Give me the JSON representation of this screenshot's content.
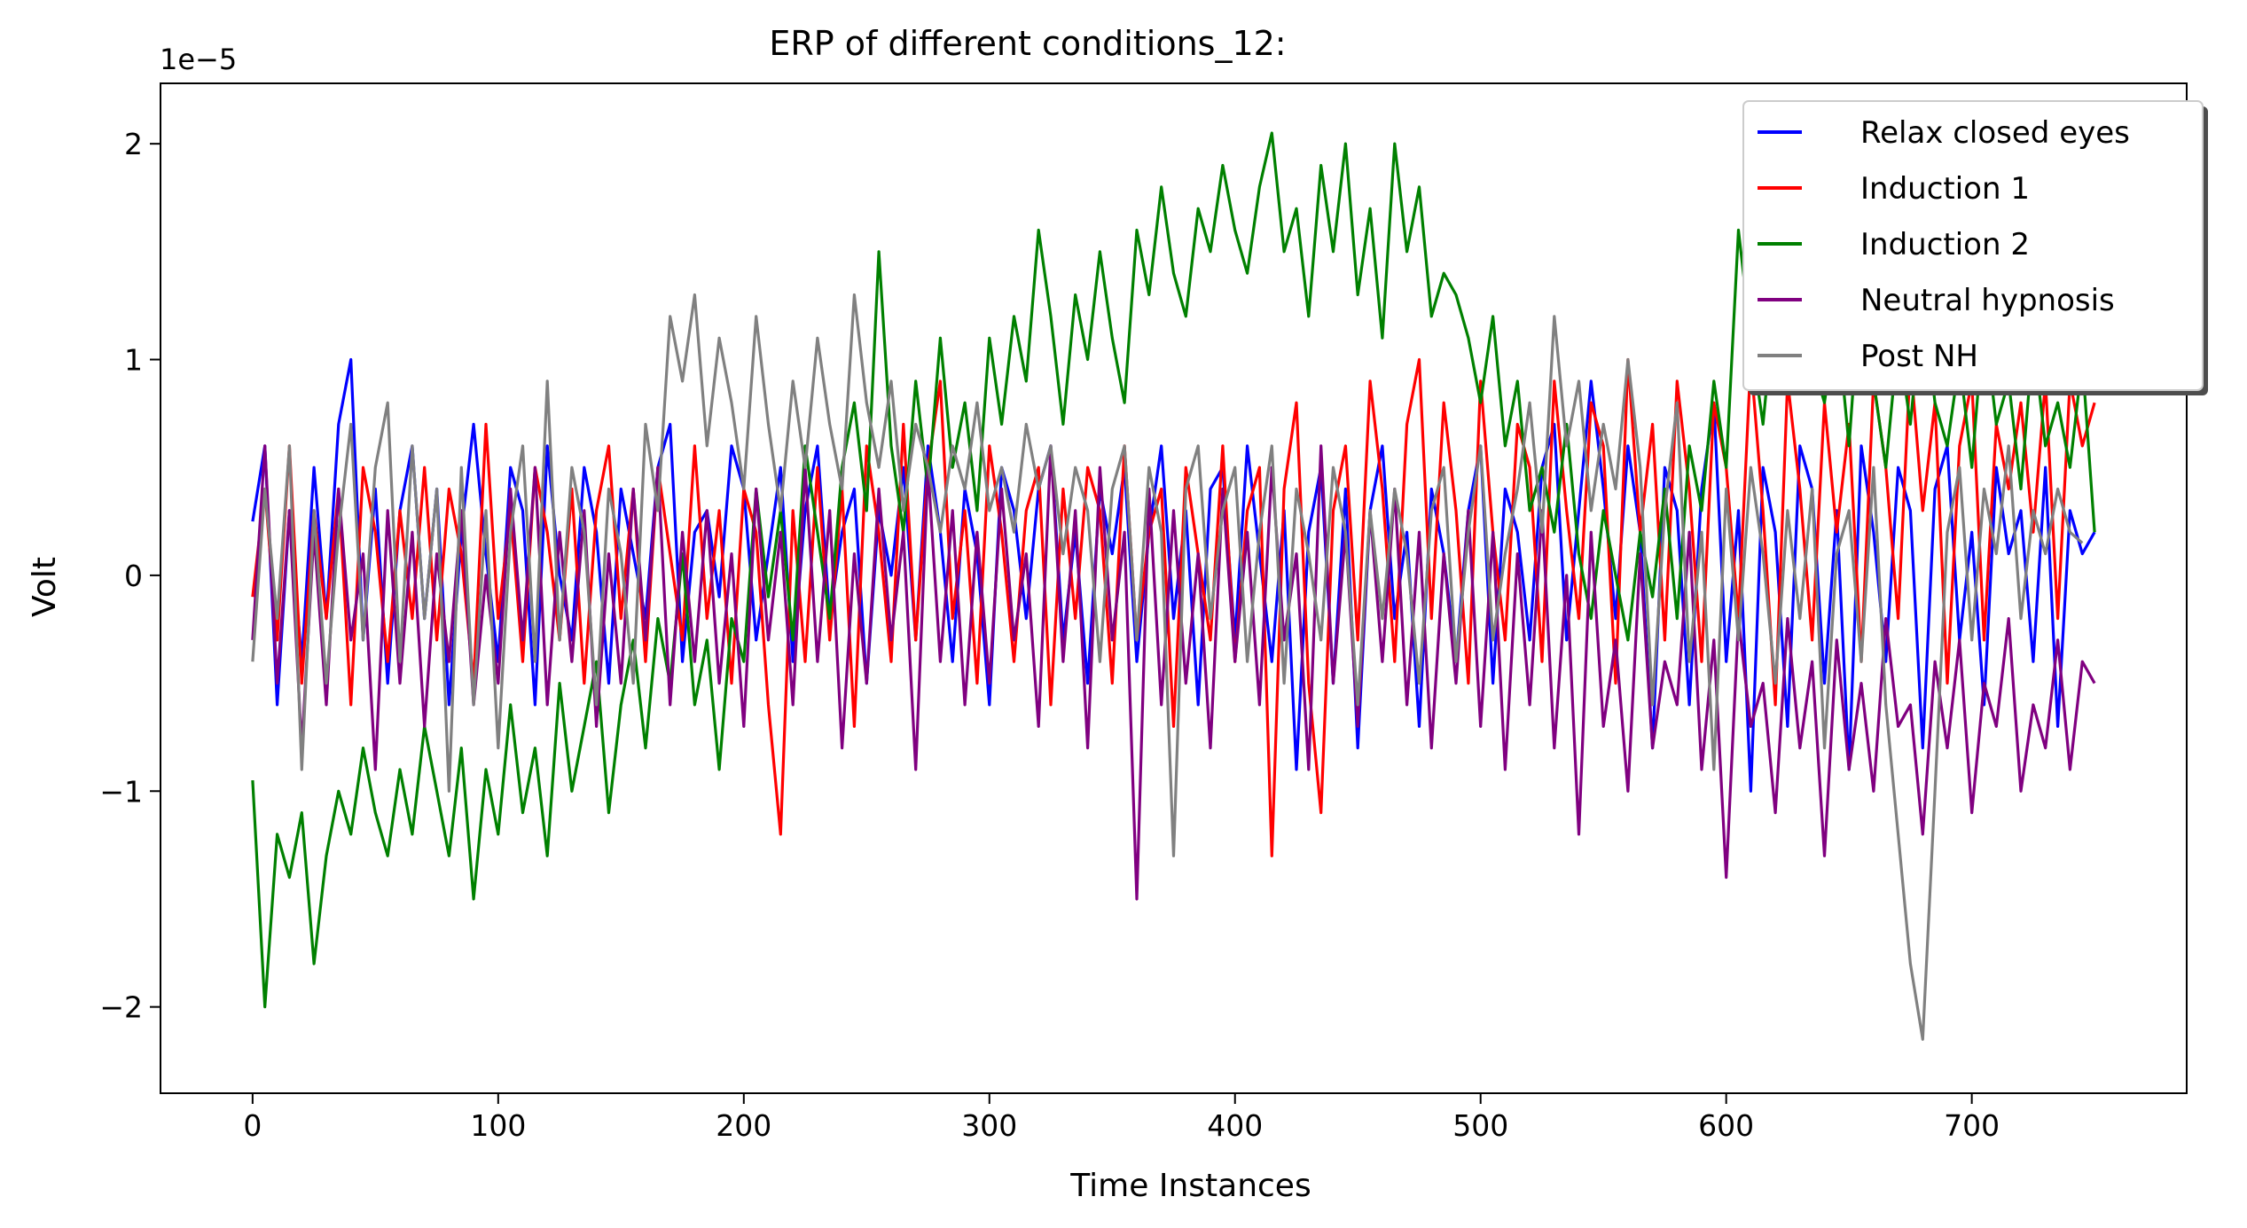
{
  "chart_data": {
    "type": "line",
    "title": "ERP of different conditions_12:",
    "xlabel": "Time Instances",
    "ylabel": "Volt",
    "y_offset_label": "1e−5",
    "xlim": [
      -37.5,
      787.5
    ],
    "ylim": [
      -2.4,
      2.28
    ],
    "x_ticks": [
      0,
      100,
      200,
      300,
      400,
      500,
      600,
      700
    ],
    "x_tick_labels": [
      "0",
      "100",
      "200",
      "300",
      "400",
      "500",
      "600",
      "700"
    ],
    "y_ticks": [
      -2,
      -1,
      0,
      1,
      2
    ],
    "y_tick_labels": [
      "−2",
      "−1",
      "0",
      "1",
      "2"
    ],
    "grid": false,
    "legend_position": "top-right",
    "x_step": 5,
    "series": [
      {
        "name": "Relax closed eyes",
        "color": "#0000ff",
        "values": [
          0.25,
          0.6,
          -0.6,
          0.3,
          -0.4,
          0.5,
          -0.2,
          0.7,
          1.0,
          -0.3,
          0.4,
          -0.5,
          0.3,
          0.6,
          -0.2,
          0.4,
          -0.6,
          0.2,
          0.7,
          0.1,
          -0.4,
          0.5,
          0.3,
          -0.6,
          0.6,
          0.0,
          -0.3,
          0.5,
          0.2,
          -0.5,
          0.4,
          0.1,
          -0.2,
          0.5,
          0.7,
          -0.4,
          0.2,
          0.3,
          -0.1,
          0.6,
          0.4,
          -0.3,
          0.1,
          0.5,
          -0.4,
          0.3,
          0.6,
          -0.2,
          0.2,
          0.4,
          -0.5,
          0.3,
          0.0,
          0.5,
          -0.3,
          0.6,
          0.2,
          -0.4,
          0.4,
          0.1,
          -0.6,
          0.5,
          0.3,
          -0.2,
          0.4,
          0.6,
          -0.3,
          0.2,
          -0.5,
          0.4,
          0.1,
          0.5,
          -0.4,
          0.2,
          0.6,
          -0.2,
          0.3,
          -0.6,
          0.4,
          0.5,
          -0.3,
          0.6,
          0.1,
          -0.4,
          0.3,
          -0.9,
          0.2,
          0.5,
          -0.5,
          0.4,
          -0.8,
          0.3,
          0.6,
          -0.2,
          0.2,
          -0.7,
          0.4,
          0.1,
          -0.4,
          0.3,
          0.6,
          -0.5,
          0.4,
          0.2,
          -0.3,
          0.5,
          0.7,
          -0.3,
          0.3,
          0.9,
          0.4,
          -0.2,
          0.6,
          0.2,
          -0.8,
          0.5,
          0.3,
          -0.6,
          0.4,
          0.8,
          -0.4,
          0.3,
          -1.0,
          0.5,
          0.2,
          -0.7,
          0.6,
          0.4,
          -0.5,
          0.3,
          -0.9,
          0.6,
          0.2,
          -0.4,
          0.5,
          0.3,
          -0.8,
          0.4,
          0.6,
          -0.3,
          0.2,
          -0.6,
          0.5,
          0.1,
          0.3,
          -0.4,
          0.5,
          -0.7,
          0.3,
          0.1,
          0.2
        ]
      },
      {
        "name": "Induction 1",
        "color": "#ff0000",
        "values": [
          -0.1,
          0.4,
          -0.3,
          0.6,
          -0.5,
          0.3,
          -0.2,
          0.4,
          -0.6,
          0.5,
          0.2,
          -0.4,
          0.3,
          -0.2,
          0.5,
          -0.3,
          0.4,
          0.1,
          -0.5,
          0.7,
          -0.2,
          0.3,
          -0.4,
          0.5,
          0.2,
          -0.3,
          0.4,
          -0.5,
          0.3,
          0.6,
          -0.2,
          0.4,
          -0.4,
          0.5,
          0.1,
          -0.3,
          0.6,
          -0.2,
          0.3,
          -0.5,
          0.4,
          0.2,
          -0.6,
          -1.2,
          0.3,
          -0.4,
          0.5,
          -0.3,
          0.4,
          -0.7,
          0.6,
          0.2,
          -0.4,
          0.7,
          -0.3,
          0.5,
          0.9,
          -0.2,
          0.3,
          -0.5,
          0.6,
          0.2,
          -0.4,
          0.3,
          0.5,
          -0.6,
          0.4,
          -0.2,
          0.5,
          0.3,
          -0.5,
          0.6,
          -0.3,
          0.2,
          0.4,
          -0.7,
          0.5,
          0.1,
          -0.3,
          0.6,
          -0.4,
          0.3,
          0.5,
          -1.3,
          0.4,
          0.8,
          -0.5,
          -1.1,
          0.3,
          0.6,
          -0.3,
          0.9,
          0.4,
          -0.4,
          0.7,
          1.0,
          -0.2,
          0.8,
          0.3,
          -0.5,
          0.9,
          0.2,
          -0.3,
          0.7,
          0.5,
          -0.4,
          0.9,
          0.3,
          -0.2,
          0.8,
          0.6,
          -0.5,
          1.0,
          0.2,
          0.7,
          -0.3,
          0.9,
          0.4,
          -0.4,
          0.8,
          0.5,
          -0.2,
          1.0,
          0.3,
          -0.6,
          0.9,
          0.4,
          -0.3,
          0.8,
          0.2,
          0.7,
          -0.4,
          0.9,
          0.5,
          -0.2,
          1.0,
          0.3,
          0.8,
          -0.5,
          0.6,
          0.9,
          -0.3,
          0.7,
          0.4,
          0.8,
          0.2,
          0.9,
          -0.2,
          0.9,
          0.6,
          0.8
        ]
      },
      {
        "name": "Induction 2",
        "color": "#008000",
        "values": [
          -0.95,
          -2.0,
          -1.2,
          -1.4,
          -1.1,
          -1.8,
          -1.3,
          -1.0,
          -1.2,
          -0.8,
          -1.1,
          -1.3,
          -0.9,
          -1.2,
          -0.7,
          -1.0,
          -1.3,
          -0.8,
          -1.5,
          -0.9,
          -1.2,
          -0.6,
          -1.1,
          -0.8,
          -1.3,
          -0.5,
          -1.0,
          -0.7,
          -0.4,
          -1.1,
          -0.6,
          -0.3,
          -0.8,
          -0.2,
          -0.5,
          0.1,
          -0.6,
          -0.3,
          -0.9,
          -0.2,
          -0.4,
          0.4,
          -0.1,
          0.3,
          -0.3,
          0.6,
          0.2,
          -0.2,
          0.5,
          0.8,
          0.3,
          1.5,
          0.6,
          0.2,
          0.9,
          0.4,
          1.1,
          0.5,
          0.8,
          0.3,
          1.1,
          0.7,
          1.2,
          0.9,
          1.6,
          1.2,
          0.7,
          1.3,
          1.0,
          1.5,
          1.1,
          0.8,
          1.6,
          1.3,
          1.8,
          1.4,
          1.2,
          1.7,
          1.5,
          1.9,
          1.6,
          1.4,
          1.8,
          2.05,
          1.5,
          1.7,
          1.2,
          1.9,
          1.5,
          2.0,
          1.3,
          1.7,
          1.1,
          2.0,
          1.5,
          1.8,
          1.2,
          1.4,
          1.3,
          1.1,
          0.8,
          1.2,
          0.6,
          0.9,
          0.3,
          0.5,
          0.2,
          0.7,
          0.1,
          -0.2,
          0.3,
          0.0,
          -0.3,
          0.2,
          -0.1,
          0.4,
          -0.2,
          0.6,
          0.3,
          0.9,
          0.5,
          1.6,
          1.1,
          0.7,
          1.3,
          0.9,
          1.5,
          1.0,
          0.8,
          1.2,
          0.6,
          1.4,
          0.9,
          0.5,
          1.1,
          0.7,
          1.3,
          0.8,
          0.6,
          1.0,
          0.5,
          1.2,
          0.7,
          0.9,
          0.4,
          1.1,
          0.6,
          0.8,
          0.5,
          1.0,
          0.2
        ]
      },
      {
        "name": "Neutral hypnosis",
        "color": "#800080",
        "values": [
          -0.3,
          0.6,
          -0.5,
          0.3,
          -0.8,
          0.2,
          -0.6,
          0.4,
          -0.3,
          0.1,
          -0.9,
          0.3,
          -0.5,
          0.2,
          -0.7,
          0.1,
          -0.4,
          0.3,
          -0.6,
          0.0,
          -0.5,
          0.4,
          -0.3,
          0.5,
          -0.6,
          0.2,
          -0.4,
          0.3,
          -0.7,
          0.1,
          -0.5,
          0.4,
          -0.3,
          0.5,
          -0.6,
          0.2,
          -0.4,
          0.3,
          -0.5,
          0.1,
          -0.7,
          0.4,
          -0.3,
          0.2,
          -0.6,
          0.5,
          -0.4,
          0.3,
          -0.8,
          0.1,
          -0.5,
          0.4,
          -0.3,
          0.2,
          -0.9,
          0.5,
          -0.4,
          0.3,
          -0.6,
          0.2,
          -0.5,
          0.4,
          -0.3,
          0.1,
          -0.7,
          0.6,
          -0.4,
          0.3,
          -0.8,
          0.5,
          -0.3,
          0.2,
          -1.5,
          0.4,
          -0.6,
          0.3,
          -0.5,
          0.1,
          -0.8,
          0.4,
          -0.4,
          0.2,
          -0.6,
          0.5,
          -0.3,
          0.1,
          -0.9,
          0.6,
          -0.5,
          0.2,
          -0.7,
          0.3,
          -0.4,
          0.4,
          -0.6,
          0.2,
          -0.8,
          0.1,
          -0.5,
          0.3,
          -0.7,
          0.2,
          -0.9,
          0.1,
          -0.6,
          0.3,
          -0.8,
          0.0,
          -1.2,
          0.2,
          -0.7,
          -0.3,
          -1.0,
          0.1,
          -0.8,
          -0.4,
          -0.6,
          0.2,
          -0.9,
          -0.3,
          -1.4,
          -0.2,
          -0.7,
          -0.5,
          -1.1,
          -0.2,
          -0.8,
          -0.4,
          -1.3,
          -0.3,
          -0.9,
          -0.5,
          -1.0,
          -0.2,
          -0.7,
          -0.6,
          -1.2,
          -0.4,
          -0.8,
          -0.3,
          -1.1,
          -0.5,
          -0.7,
          -0.2,
          -1.0,
          -0.6,
          -0.8,
          -0.3,
          -0.9,
          -0.4,
          -0.5
        ]
      },
      {
        "name": "Post NH",
        "color": "#808080",
        "values": [
          -0.4,
          0.4,
          -0.2,
          0.6,
          -0.9,
          0.3,
          -0.5,
          0.2,
          0.7,
          -0.3,
          0.5,
          0.8,
          -0.4,
          0.6,
          -0.2,
          0.4,
          -1.0,
          0.5,
          -0.6,
          0.3,
          -0.8,
          0.2,
          0.6,
          -0.4,
          0.9,
          -0.3,
          0.5,
          0.2,
          -0.6,
          0.4,
          0.1,
          -0.5,
          0.7,
          0.3,
          1.2,
          0.9,
          1.3,
          0.6,
          1.1,
          0.8,
          0.4,
          1.2,
          0.7,
          0.3,
          0.9,
          0.5,
          1.1,
          0.7,
          0.4,
          1.3,
          0.8,
          0.5,
          0.9,
          0.3,
          0.7,
          0.5,
          0.2,
          0.6,
          0.4,
          0.8,
          0.3,
          0.5,
          0.2,
          0.7,
          0.4,
          0.6,
          0.1,
          0.5,
          0.3,
          -0.4,
          0.4,
          0.6,
          -0.3,
          0.5,
          0.2,
          -1.3,
          0.4,
          0.6,
          -0.2,
          0.3,
          0.5,
          -0.4,
          0.2,
          0.6,
          -0.5,
          0.4,
          0.1,
          -0.3,
          0.5,
          0.2,
          -0.6,
          0.3,
          -0.2,
          0.4,
          0.1,
          -0.5,
          0.3,
          0.5,
          -0.4,
          0.2,
          0.6,
          -0.3,
          0.1,
          0.4,
          0.8,
          0.2,
          1.2,
          0.6,
          0.9,
          0.3,
          0.7,
          0.4,
          1.0,
          0.5,
          -0.6,
          0.3,
          0.8,
          -0.4,
          0.2,
          -0.9,
          0.4,
          -0.3,
          0.5,
          0.1,
          -0.5,
          0.3,
          -0.2,
          0.4,
          -0.8,
          0.1,
          0.3,
          -0.4,
          0.5,
          -0.6,
          -1.2,
          -1.8,
          -2.15,
          -1.0,
          0.2,
          0.5,
          -0.3,
          0.4,
          0.1,
          0.6,
          -0.2,
          0.3,
          0.1,
          0.4,
          0.2,
          0.15
        ]
      }
    ]
  }
}
